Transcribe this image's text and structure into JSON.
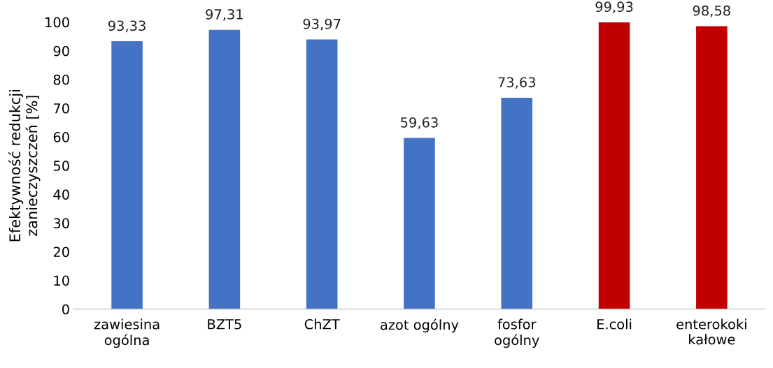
{
  "chart_data": {
    "type": "bar",
    "ylabel": "Efektywność redukcji\nzanieczyszczeń [%]",
    "categories": [
      "zawiesina\nogólna",
      "BZT5",
      "ChZT",
      "azot ogólny",
      "fosfor\nogólny",
      "E.coli",
      "enterokoki\nkałowe"
    ],
    "values": [
      93.33,
      97.31,
      93.97,
      59.63,
      73.63,
      99.93,
      98.58
    ],
    "colors": [
      "#4472c4",
      "#4472c4",
      "#4472c4",
      "#4472c4",
      "#4472c4",
      "#c00000",
      "#c00000"
    ],
    "value_labels": [
      "93,33",
      "97,31",
      "93,97",
      "59,63",
      "73,63",
      "99,93",
      "98,58"
    ],
    "ylim": [
      0,
      100
    ],
    "yticks": [
      0,
      10,
      20,
      30,
      40,
      50,
      60,
      70,
      80,
      90,
      100
    ],
    "grid": false,
    "legend": false
  }
}
